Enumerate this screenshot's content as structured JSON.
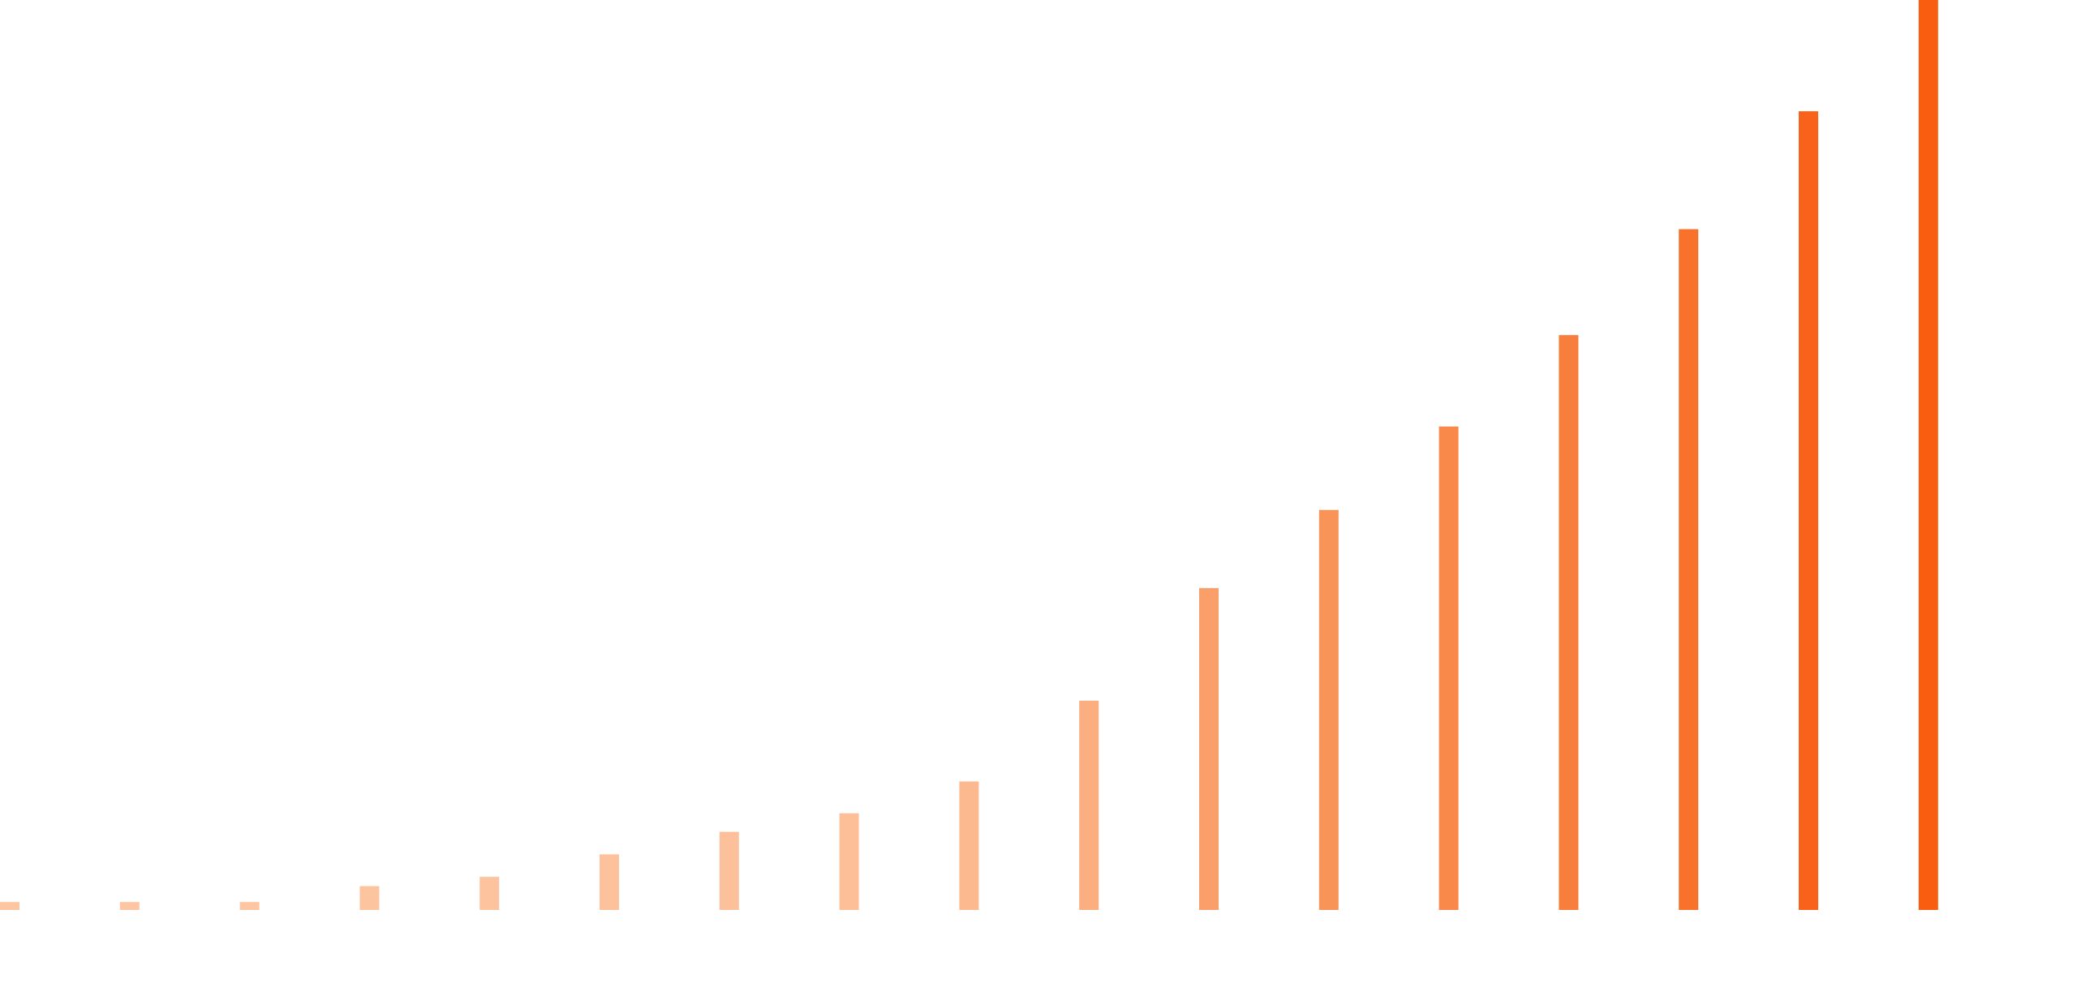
{
  "chart_data": {
    "type": "bar",
    "categories": [
      null,
      null,
      null,
      null,
      null,
      null,
      null,
      null,
      null,
      null,
      null,
      null,
      null,
      null,
      null,
      null,
      null
    ],
    "values": [
      6,
      6,
      6,
      18,
      25,
      42,
      59,
      73,
      97,
      158,
      243,
      302,
      365,
      434,
      514,
      603,
      687
    ],
    "colors": [
      "#fdc5a2",
      "#fdc5a2",
      "#fdc5a2",
      "#fdc4a0",
      "#fdc39e",
      "#fdc29c",
      "#fcc19b",
      "#fcbf98",
      "#fcb88e",
      "#fbae80",
      "#fa9f6a",
      "#f99459",
      "#f9894b",
      "#f87e3b",
      "#f8722b",
      "#f9621a",
      "#f95e10"
    ],
    "ylim": [
      0,
      687
    ]
  }
}
